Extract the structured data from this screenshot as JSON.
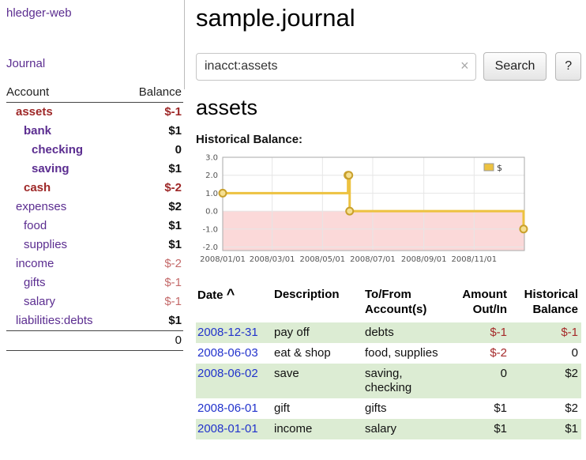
{
  "app": {
    "title": "hledger-web"
  },
  "sidebar": {
    "journal_link": "Journal",
    "table_header": {
      "account": "Account",
      "balance": "Balance"
    },
    "accounts": [
      {
        "name": "assets",
        "balance": "$-1"
      },
      {
        "name": "bank",
        "balance": "$1"
      },
      {
        "name": "checking",
        "balance": "0"
      },
      {
        "name": "saving",
        "balance": "$1"
      },
      {
        "name": "cash",
        "balance": "$-2"
      },
      {
        "name": "expenses",
        "balance": "$2"
      },
      {
        "name": "food",
        "balance": "$1"
      },
      {
        "name": "supplies",
        "balance": "$1"
      },
      {
        "name": "income",
        "balance": "$-2"
      },
      {
        "name": "gifts",
        "balance": "$-1"
      },
      {
        "name": "salary",
        "balance": "$-1"
      },
      {
        "name": "liabilities:debts",
        "balance": "$1"
      }
    ],
    "total": "0"
  },
  "main": {
    "title": "sample.journal",
    "search": {
      "value": "inacct:assets",
      "clear": "×",
      "button": "Search",
      "help": "?"
    },
    "account_heading": "assets",
    "chart_heading": "Historical Balance:"
  },
  "chart_data": {
    "type": "line",
    "title": "Historical Balance",
    "step": true,
    "series": [
      {
        "name": "$",
        "color": "#edc240",
        "marker_fill": "#f5df91",
        "marker_stroke": "#c9a02c",
        "points": [
          {
            "date": "2008-01-01",
            "value": 1
          },
          {
            "date": "2008-06-01",
            "value": 2
          },
          {
            "date": "2008-06-02",
            "value": 2
          },
          {
            "date": "2008-06-03",
            "value": 0
          },
          {
            "date": "2008-12-31",
            "value": -1
          }
        ]
      }
    ],
    "x_range": [
      "2008-01-01",
      "2009-01-01"
    ],
    "ylim": [
      -2.2,
      3.0
    ],
    "x_ticks": [
      {
        "date": "2008-01-01",
        "label": "2008/01/01"
      },
      {
        "date": "2008-03-01",
        "label": "2008/03/01"
      },
      {
        "date": "2008-05-01",
        "label": "2008/05/01"
      },
      {
        "date": "2008-07-01",
        "label": "2008/07/01"
      },
      {
        "date": "2008-09-01",
        "label": "2008/09/01"
      },
      {
        "date": "2008-11-01",
        "label": "2008/11/01"
      }
    ],
    "y_ticks": [
      {
        "value": 3,
        "label": "3.0"
      },
      {
        "value": 2,
        "label": "2.0"
      },
      {
        "value": 1,
        "label": "1.0"
      },
      {
        "value": 0,
        "label": "0.0"
      },
      {
        "value": -1,
        "label": "-1.0"
      },
      {
        "value": -2,
        "label": "-2.0"
      }
    ],
    "negative_region_color": "#fbd9d9",
    "grid_color": "#e6e6e6",
    "border_color": "#aaaaaa",
    "legend": {
      "label": "$",
      "position": "top-right"
    }
  },
  "register": {
    "header": {
      "date": "Date",
      "sort_indicator": "^",
      "description": "Description",
      "accounts": "To/From Account(s)",
      "amount": "Amount Out/In",
      "balance": "Historical Balance"
    },
    "rows": [
      {
        "date": "2008-12-31",
        "description": "pay off",
        "accounts": "debts",
        "amount": "$-1",
        "balance": "$-1"
      },
      {
        "date": "2008-06-03",
        "description": "eat & shop",
        "accounts": "food, supplies",
        "amount": "$-2",
        "balance": "0"
      },
      {
        "date": "2008-06-02",
        "description": "save",
        "accounts": "saving, checking",
        "amount": "0",
        "balance": "$2"
      },
      {
        "date": "2008-06-01",
        "description": "gift",
        "accounts": "gifts",
        "amount": "$1",
        "balance": "$2"
      },
      {
        "date": "2008-01-01",
        "description": "income",
        "accounts": "salary",
        "amount": "$1",
        "balance": "$1"
      }
    ]
  }
}
